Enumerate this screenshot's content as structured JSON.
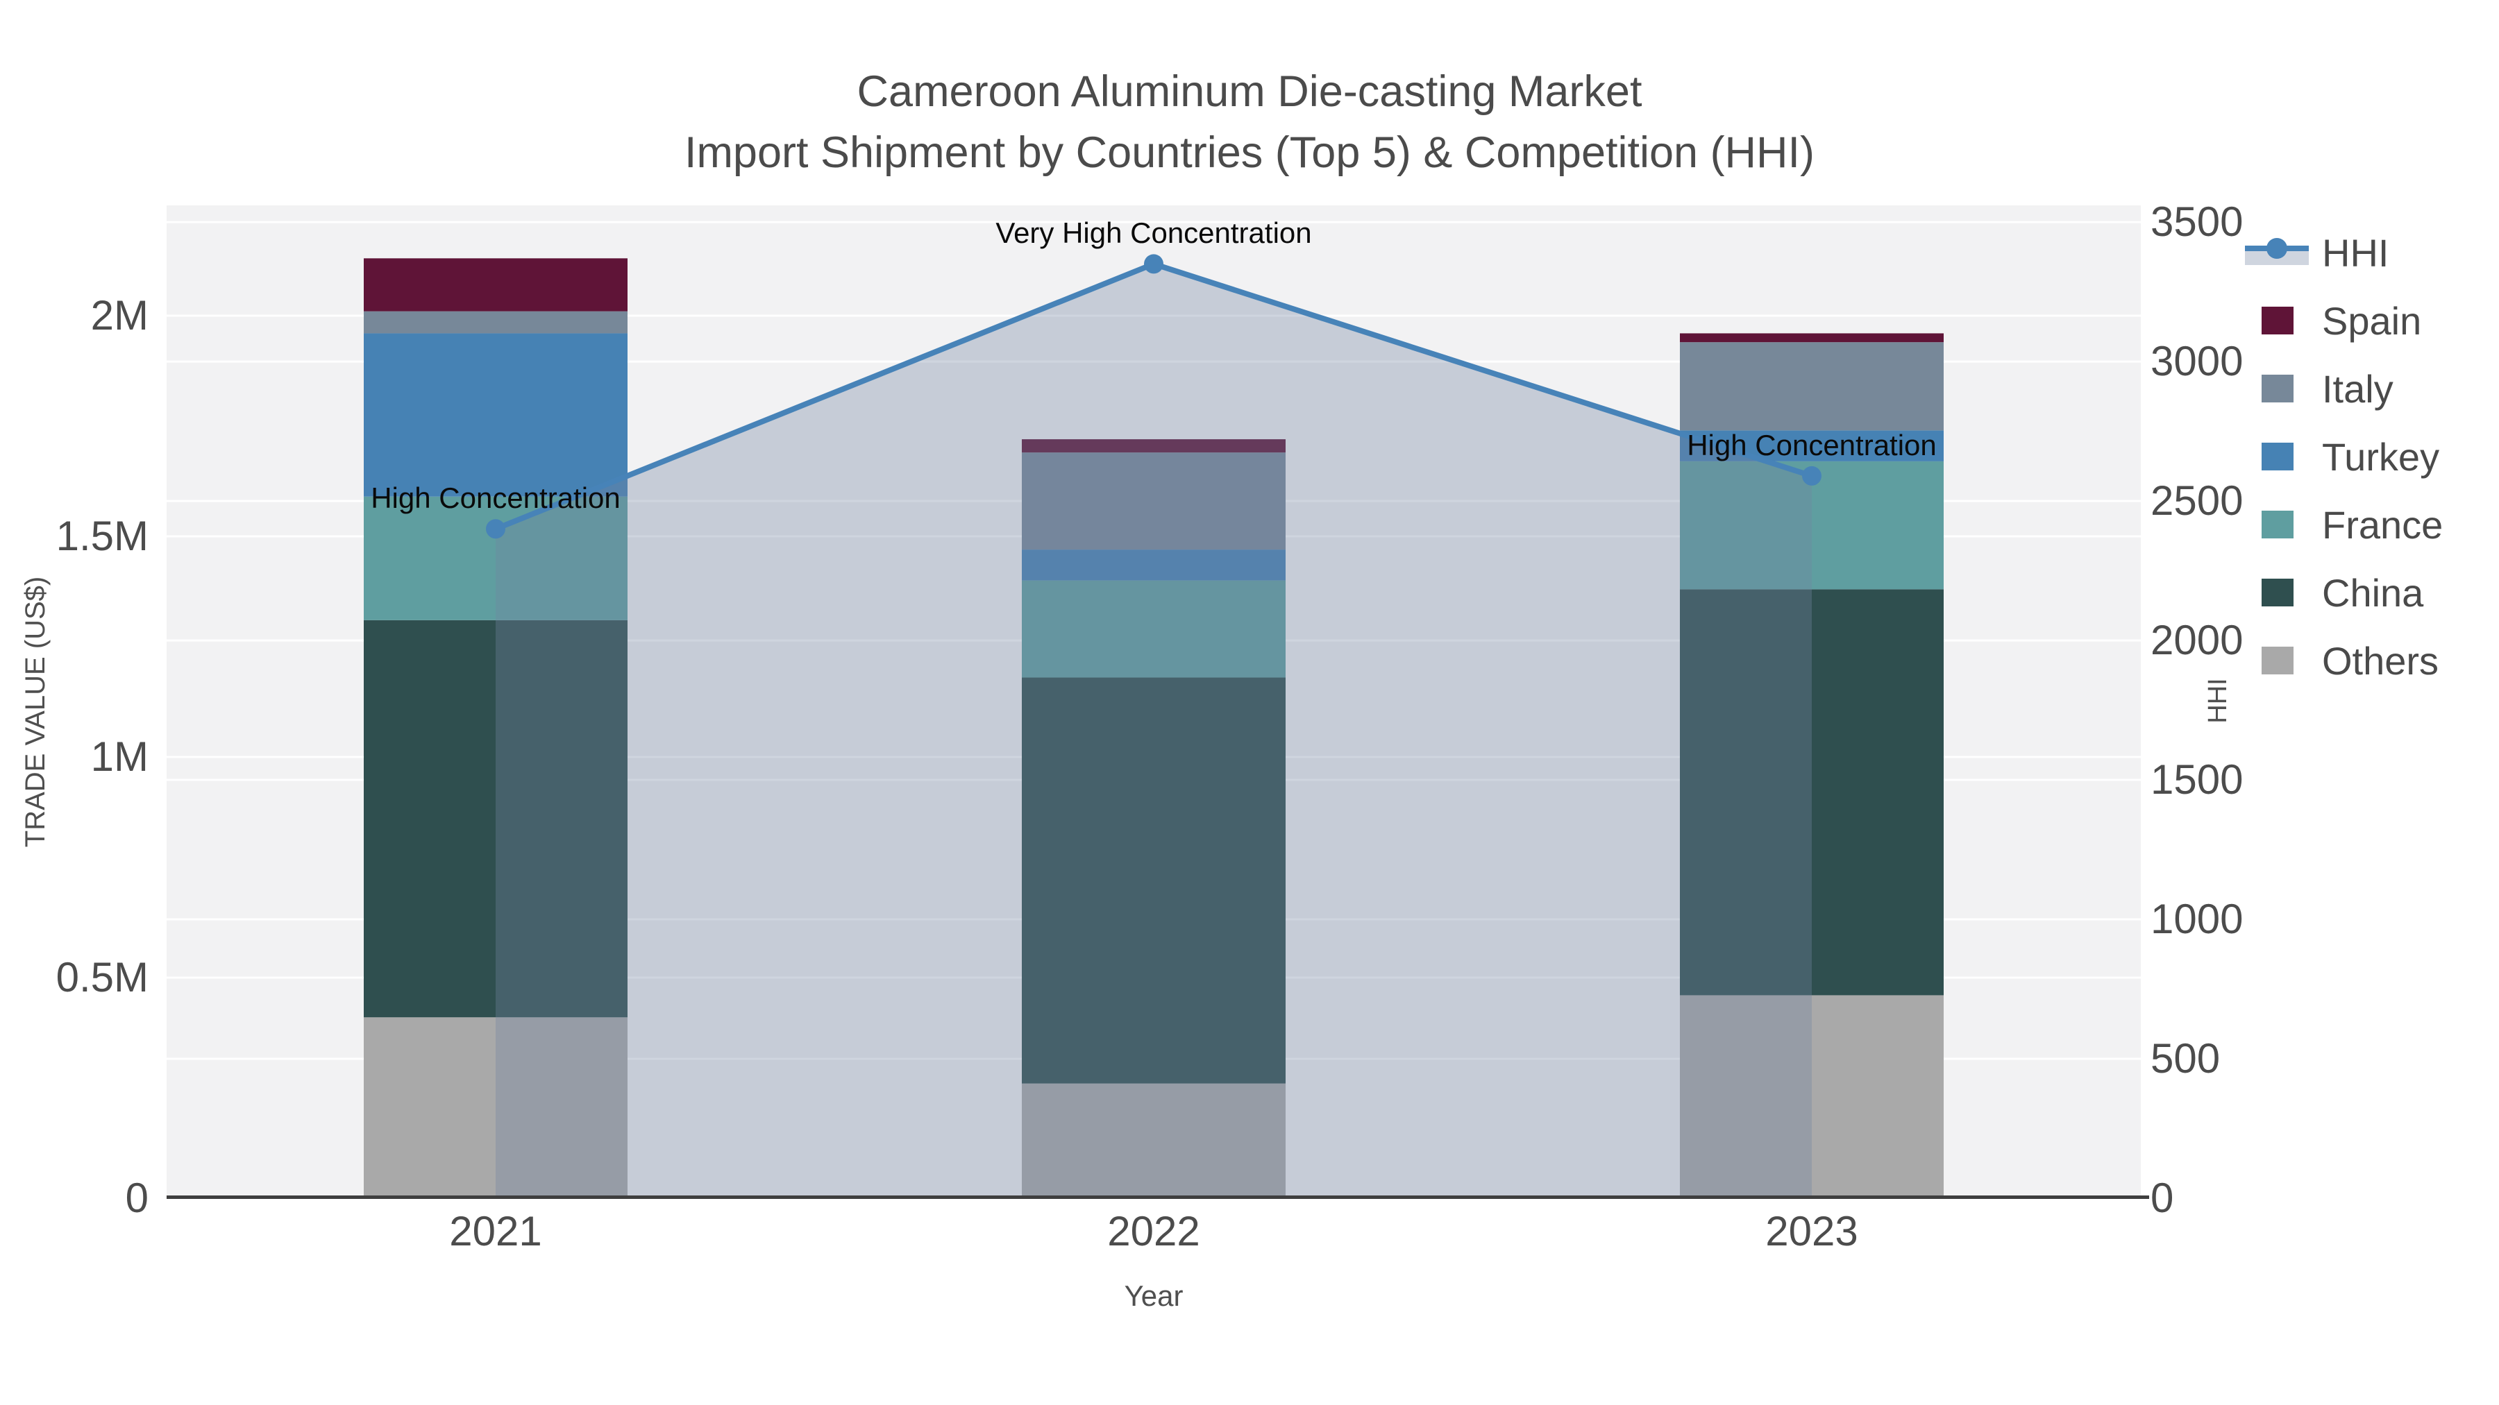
{
  "title": {
    "line1": "Cameroon Aluminum Die-casting Market",
    "line2": "Import Shipment by Countries (Top 5) & Competition (HHI)"
  },
  "chart_data": {
    "type": "combo: stacked-bar (trade value, left axis) + line-with-area (HHI, right axis)",
    "x": [
      "2021",
      "2022",
      "2023"
    ],
    "xlabel": "Year",
    "ylabel_left": "TRADE VALUE (US$)",
    "ylabel_right": "HHI",
    "left_axis": {
      "tick_labels": [
        "0",
        "0.5M",
        "1M",
        "1.5M",
        "2M"
      ],
      "tick_values": [
        0,
        500000,
        1000000,
        1500000,
        2000000
      ],
      "range": [
        0,
        2250000
      ]
    },
    "right_axis": {
      "tick_labels": [
        "0",
        "500",
        "1000",
        "1500",
        "2000",
        "2500",
        "3000",
        "3500"
      ],
      "tick_values": [
        0,
        500,
        1000,
        1500,
        2000,
        2500,
        3000,
        3500
      ],
      "range": [
        0,
        3560
      ]
    },
    "bar_series_bottom_to_top": [
      {
        "name": "Others",
        "color": "#a9a9a9",
        "values": [
          410000,
          260000,
          460000
        ]
      },
      {
        "name": "China",
        "color": "#2f4f4f",
        "values": [
          900000,
          920000,
          920000
        ]
      },
      {
        "name": "France",
        "color": "#5f9ea0",
        "values": [
          280000,
          220000,
          290000
        ]
      },
      {
        "name": "Turkey",
        "color": "#4682b4",
        "values": [
          370000,
          70000,
          70000
        ]
      },
      {
        "name": "Italy",
        "color": "#778899",
        "values": [
          50000,
          220000,
          200000
        ]
      },
      {
        "name": "Spain",
        "color": "#5f1437",
        "values": [
          120000,
          30000,
          20000
        ]
      }
    ],
    "line_series": {
      "name": "HHI",
      "values": [
        2400,
        3350,
        2590
      ],
      "color": "#4783b8",
      "area_fill": "rgba(115,133,162,0.34)"
    },
    "annotations": [
      {
        "year": "2021",
        "text": "High Concentration"
      },
      {
        "year": "2022",
        "text": "Very High Concentration"
      },
      {
        "year": "2023",
        "text": "High Concentration"
      }
    ],
    "legend": [
      {
        "label": "HHI",
        "type": "line",
        "color": "#4783b8"
      },
      {
        "label": "Spain",
        "type": "square",
        "color": "#5f1437"
      },
      {
        "label": "Italy",
        "type": "square",
        "color": "#778899"
      },
      {
        "label": "Turkey",
        "type": "square",
        "color": "#4682b4"
      },
      {
        "label": "France",
        "type": "square",
        "color": "#5f9ea0"
      },
      {
        "label": "China",
        "type": "square",
        "color": "#2f4f4f"
      },
      {
        "label": "Others",
        "type": "square",
        "color": "#a9a9a9"
      }
    ],
    "colors": {
      "plot_background": "#f2f2f3",
      "gridline": "#ffffff",
      "axis_line": "#3f3f3f",
      "text": "#4a4a4a",
      "annotation": "#0a0a0a"
    }
  }
}
